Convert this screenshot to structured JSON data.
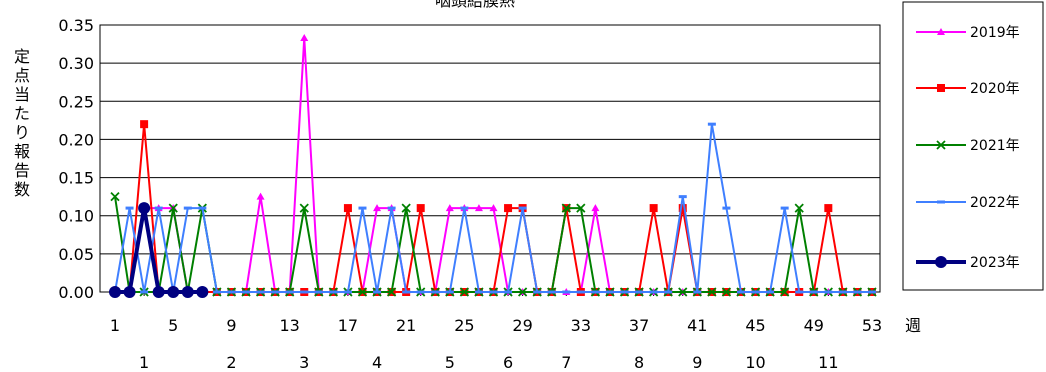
{
  "chart_data": {
    "type": "line",
    "title": "咽頭結膜熱",
    "ylabel": "定点当たり報告数",
    "xlabel": "週",
    "ylim": [
      0,
      0.35
    ],
    "yticks": [
      "0.00",
      "0.05",
      "0.10",
      "0.15",
      "0.20",
      "0.25",
      "0.30",
      "0.35"
    ],
    "xticks": [
      1,
      5,
      9,
      13,
      17,
      21,
      25,
      29,
      33,
      37,
      41,
      45,
      49,
      53
    ],
    "month_labels": [
      {
        "label": "1",
        "week": 3
      },
      {
        "label": "2",
        "week": 9
      },
      {
        "label": "3",
        "week": 14
      },
      {
        "label": "4",
        "week": 19
      },
      {
        "label": "5",
        "week": 24
      },
      {
        "label": "6",
        "week": 28
      },
      {
        "label": "7",
        "week": 32
      },
      {
        "label": "8",
        "week": 37
      },
      {
        "label": "9",
        "week": 41
      },
      {
        "label": "10",
        "week": 45
      },
      {
        "label": "11",
        "week": 50
      }
    ],
    "grid": true,
    "legend_position": "right",
    "series": [
      {
        "name": "2019年",
        "color": "#FF00FF",
        "marker": "triangle",
        "values": [
          0,
          0,
          0.11,
          0.11,
          0.11,
          0,
          0,
          0,
          0,
          0,
          0.125,
          0,
          0,
          0.333,
          0,
          0,
          0,
          0,
          0.11,
          0.11,
          0,
          0,
          0,
          0.11,
          0.11,
          0.11,
          0.11,
          0,
          0,
          0,
          0,
          0,
          0,
          0.11,
          0,
          0,
          0,
          0,
          0,
          0,
          0,
          0,
          0,
          0,
          0,
          0,
          0,
          0,
          0,
          0,
          0,
          0,
          0
        ]
      },
      {
        "name": "2020年",
        "color": "#FF0000",
        "marker": "square",
        "values": [
          0,
          0,
          0.22,
          0,
          0,
          0,
          0,
          0,
          0,
          0,
          0,
          0,
          0,
          0,
          0,
          0,
          0.11,
          0,
          0,
          0,
          0,
          0.11,
          0,
          0,
          0,
          0,
          0,
          0.11,
          0.11,
          0,
          0,
          0.11,
          0,
          0,
          0,
          0,
          0,
          0.11,
          0,
          0.11,
          0,
          0,
          0,
          0,
          0,
          0,
          0,
          0,
          0,
          0.11,
          0,
          0,
          0
        ]
      },
      {
        "name": "2021年",
        "color": "#008000",
        "marker": "x",
        "values": [
          0.125,
          0,
          0,
          0,
          0.11,
          0,
          0.11,
          0,
          0,
          0,
          0,
          0,
          0,
          0.11,
          0,
          0,
          0,
          0,
          0,
          0,
          0.11,
          0,
          0,
          0,
          0,
          0,
          0,
          0,
          0,
          0,
          0,
          0.11,
          0.11,
          0,
          0,
          0,
          0,
          0,
          0,
          0,
          0,
          0,
          0,
          0,
          0,
          0,
          0,
          0.11,
          0,
          0,
          0,
          0,
          0
        ]
      },
      {
        "name": "2022年",
        "color": "#3F7FFF",
        "marker": "dash",
        "values": [
          0,
          0.11,
          0,
          0.11,
          0,
          0.11,
          0.11,
          0,
          0,
          0,
          0,
          0,
          0,
          0,
          0,
          0,
          0,
          0.11,
          0,
          0.11,
          0,
          0,
          0,
          0,
          0.11,
          0,
          0,
          0,
          0.11,
          0,
          0,
          0,
          0,
          0,
          0,
          0,
          0,
          0,
          0,
          0.125,
          0,
          0.22,
          0.11,
          0,
          0,
          0,
          0.11,
          0,
          0,
          0,
          0,
          0,
          0
        ]
      },
      {
        "name": "2023年",
        "color": "#000080",
        "marker": "circle",
        "values": [
          0,
          0,
          0.11,
          0,
          0,
          0,
          0
        ]
      }
    ]
  }
}
